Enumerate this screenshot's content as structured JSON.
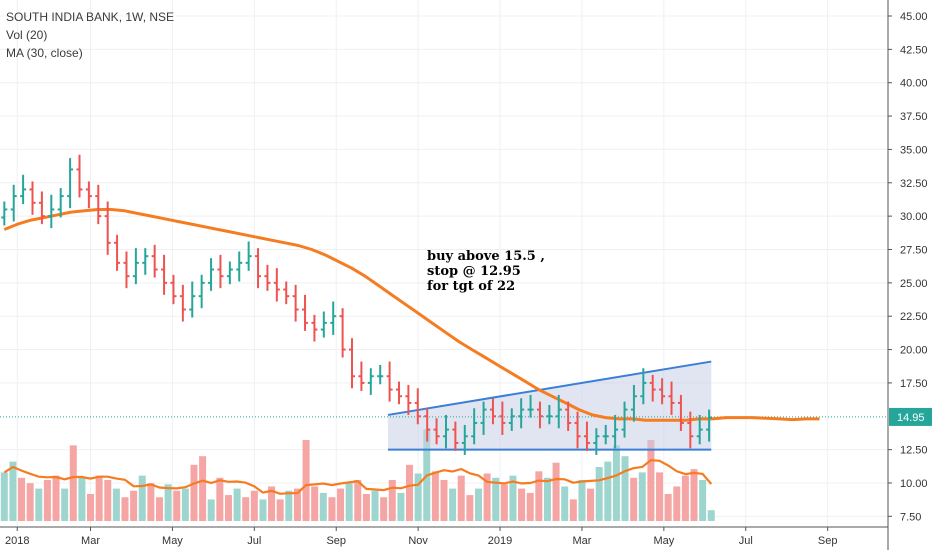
{
  "header": {
    "title": "SOUTH INDIA BANK, 1W, NSE",
    "volume_label": "Vol (20)",
    "ma_label": "MA (30, close)"
  },
  "annotation": {
    "lines": [
      "buy above 15.5 ,",
      "stop @ 12.95",
      "for tgt of 22"
    ]
  },
  "colors": {
    "up": "#26a69a",
    "down": "#ef5350",
    "vol_up": "#9fd5cf",
    "vol_down": "#f5a5a3",
    "ma": "#f57c20",
    "channel_line": "#3a7fd5",
    "channel_fill": "#c8cfe8",
    "last_price_bg": "#26a69a"
  },
  "chart_data": {
    "type": "ohlc",
    "title": "SOUTH INDIA BANK, 1W, NSE",
    "y_axis": {
      "ticks": [
        "45.00",
        "42.50",
        "40.00",
        "37.50",
        "35.00",
        "32.50",
        "30.00",
        "27.50",
        "25.00",
        "22.50",
        "20.00",
        "17.50",
        "12.50",
        "10.00",
        "7.50"
      ],
      "range": [
        6.7,
        46.2
      ]
    },
    "x_axis": {
      "ticks": [
        "2018",
        "Mar",
        "May",
        "Jul",
        "Sep",
        "Nov",
        "2019",
        "Mar",
        "May",
        "Jul",
        "Sep"
      ],
      "tick_weeks": [
        4,
        21,
        40,
        59,
        78,
        97,
        116,
        135,
        154,
        173,
        192
      ],
      "total_weeks": 206
    },
    "last_price": "14.95",
    "price_close": [
      30.5,
      31.5,
      32.0,
      31.0,
      30.0,
      30.5,
      31.5,
      33.5,
      32.0,
      31.5,
      30.0,
      28.0,
      26.5,
      25.5,
      26.5,
      27.0,
      26.0,
      25.0,
      24.0,
      23.0,
      24.0,
      25.0,
      26.0,
      25.5,
      26.0,
      26.5,
      27.0,
      25.5,
      25.0,
      24.5,
      24.0,
      23.0,
      22.0,
      21.5,
      22.0,
      22.5,
      20.0,
      18.0,
      17.5,
      18.0,
      18.0,
      17.0,
      16.5,
      16.0,
      15.0,
      14.0,
      13.5,
      14.0,
      13.0,
      13.5,
      14.5,
      15.5,
      15.0,
      14.5,
      15.0,
      15.5,
      15.5,
      15.0,
      15.0,
      15.5,
      14.5,
      13.5,
      13.0,
      13.5,
      13.5,
      14.0,
      15.5,
      16.5,
      17.5,
      17.0,
      16.5,
      16.0,
      14.5,
      13.5,
      14.0,
      14.9
    ],
    "ma": [
      29.0,
      29.4,
      29.7,
      29.9,
      30.1,
      30.3,
      30.4,
      30.5,
      30.5,
      30.4,
      30.2,
      30.0,
      29.8,
      29.6,
      29.4,
      29.2,
      29.0,
      28.8,
      28.6,
      28.4,
      28.2,
      28.0,
      27.8,
      27.5,
      27.1,
      26.6,
      26.1,
      25.5,
      24.8,
      24.1,
      23.4,
      22.7,
      22.0,
      21.3,
      20.6,
      20.0,
      19.4,
      18.8,
      18.2,
      17.6,
      17.0,
      16.5,
      16.0,
      15.5,
      15.1,
      14.9,
      14.8,
      14.8,
      14.7,
      14.7,
      14.7,
      14.7,
      14.8,
      14.8,
      14.9,
      14.9,
      14.9,
      14.85,
      14.8,
      14.75,
      14.8,
      14.8
    ],
    "ma_weeks_step": 3.1,
    "volume": [
      {
        "w": 1,
        "v": 0.45,
        "up": 1
      },
      {
        "w": 3,
        "v": 0.55,
        "up": 1
      },
      {
        "w": 5,
        "v": 0.4,
        "up": 0
      },
      {
        "w": 7,
        "v": 0.35,
        "up": 0
      },
      {
        "w": 9,
        "v": 0.3,
        "up": 1
      },
      {
        "w": 11,
        "v": 0.38,
        "up": 0
      },
      {
        "w": 13,
        "v": 0.42,
        "up": 0
      },
      {
        "w": 15,
        "v": 0.3,
        "up": 1
      },
      {
        "w": 17,
        "v": 0.7,
        "up": 0
      },
      {
        "w": 19,
        "v": 0.4,
        "up": 1
      },
      {
        "w": 21,
        "v": 0.25,
        "up": 0
      },
      {
        "w": 23,
        "v": 0.42,
        "up": 0
      },
      {
        "w": 25,
        "v": 0.38,
        "up": 0
      },
      {
        "w": 27,
        "v": 0.3,
        "up": 1
      },
      {
        "w": 29,
        "v": 0.22,
        "up": 0
      },
      {
        "w": 31,
        "v": 0.28,
        "up": 0
      },
      {
        "w": 33,
        "v": 0.42,
        "up": 1
      },
      {
        "w": 35,
        "v": 0.35,
        "up": 0
      },
      {
        "w": 37,
        "v": 0.22,
        "up": 0
      },
      {
        "w": 39,
        "v": 0.34,
        "up": 1
      },
      {
        "w": 41,
        "v": 0.28,
        "up": 0
      },
      {
        "w": 43,
        "v": 0.3,
        "up": 1
      },
      {
        "w": 45,
        "v": 0.52,
        "up": 0
      },
      {
        "w": 47,
        "v": 0.6,
        "up": 0
      },
      {
        "w": 49,
        "v": 0.2,
        "up": 1
      },
      {
        "w": 51,
        "v": 0.4,
        "up": 0
      },
      {
        "w": 53,
        "v": 0.24,
        "up": 0
      },
      {
        "w": 55,
        "v": 0.3,
        "up": 1
      },
      {
        "w": 57,
        "v": 0.22,
        "up": 0
      },
      {
        "w": 59,
        "v": 0.28,
        "up": 0
      },
      {
        "w": 61,
        "v": 0.2,
        "up": 1
      },
      {
        "w": 63,
        "v": 0.32,
        "up": 0
      },
      {
        "w": 65,
        "v": 0.2,
        "up": 0
      },
      {
        "w": 67,
        "v": 0.28,
        "up": 1
      },
      {
        "w": 69,
        "v": 0.3,
        "up": 0
      },
      {
        "w": 71,
        "v": 0.75,
        "up": 0
      },
      {
        "w": 73,
        "v": 0.32,
        "up": 0
      },
      {
        "w": 75,
        "v": 0.26,
        "up": 1
      },
      {
        "w": 77,
        "v": 0.22,
        "up": 0
      },
      {
        "w": 79,
        "v": 0.3,
        "up": 0
      },
      {
        "w": 81,
        "v": 0.35,
        "up": 1
      },
      {
        "w": 83,
        "v": 0.38,
        "up": 0
      },
      {
        "w": 85,
        "v": 0.25,
        "up": 0
      },
      {
        "w": 87,
        "v": 0.28,
        "up": 1
      },
      {
        "w": 89,
        "v": 0.22,
        "up": 0
      },
      {
        "w": 91,
        "v": 0.38,
        "up": 0
      },
      {
        "w": 93,
        "v": 0.26,
        "up": 1
      },
      {
        "w": 95,
        "v": 0.52,
        "up": 0
      },
      {
        "w": 97,
        "v": 0.44,
        "up": 1
      },
      {
        "w": 99,
        "v": 0.85,
        "up": 1
      },
      {
        "w": 101,
        "v": 0.46,
        "up": 0
      },
      {
        "w": 103,
        "v": 0.38,
        "up": 0
      },
      {
        "w": 105,
        "v": 0.3,
        "up": 1
      },
      {
        "w": 107,
        "v": 0.42,
        "up": 0
      },
      {
        "w": 109,
        "v": 0.24,
        "up": 0
      },
      {
        "w": 111,
        "v": 0.3,
        "up": 1
      },
      {
        "w": 113,
        "v": 0.44,
        "up": 0
      },
      {
        "w": 115,
        "v": 0.4,
        "up": 1
      },
      {
        "w": 117,
        "v": 0.34,
        "up": 0
      },
      {
        "w": 119,
        "v": 0.42,
        "up": 1
      },
      {
        "w": 121,
        "v": 0.3,
        "up": 0
      },
      {
        "w": 123,
        "v": 0.26,
        "up": 0
      },
      {
        "w": 125,
        "v": 0.46,
        "up": 0
      },
      {
        "w": 127,
        "v": 0.4,
        "up": 1
      },
      {
        "w": 129,
        "v": 0.54,
        "up": 0
      },
      {
        "w": 131,
        "v": 0.32,
        "up": 1
      },
      {
        "w": 133,
        "v": 0.2,
        "up": 0
      },
      {
        "w": 135,
        "v": 0.38,
        "up": 1
      },
      {
        "w": 137,
        "v": 0.3,
        "up": 0
      },
      {
        "w": 139,
        "v": 0.5,
        "up": 1
      },
      {
        "w": 141,
        "v": 0.55,
        "up": 1
      },
      {
        "w": 143,
        "v": 0.7,
        "up": 1
      },
      {
        "w": 145,
        "v": 0.6,
        "up": 1
      },
      {
        "w": 147,
        "v": 0.4,
        "up": 0
      },
      {
        "w": 149,
        "v": 0.45,
        "up": 1
      },
      {
        "w": 151,
        "v": 0.75,
        "up": 0
      },
      {
        "w": 153,
        "v": 0.45,
        "up": 0
      },
      {
        "w": 155,
        "v": 0.25,
        "up": 0
      },
      {
        "w": 157,
        "v": 0.32,
        "up": 0
      },
      {
        "w": 159,
        "v": 0.42,
        "up": 0
      },
      {
        "w": 161,
        "v": 0.48,
        "up": 0
      },
      {
        "w": 163,
        "v": 0.38,
        "up": 1
      },
      {
        "w": 165,
        "v": 0.1,
        "up": 1
      }
    ]
  }
}
